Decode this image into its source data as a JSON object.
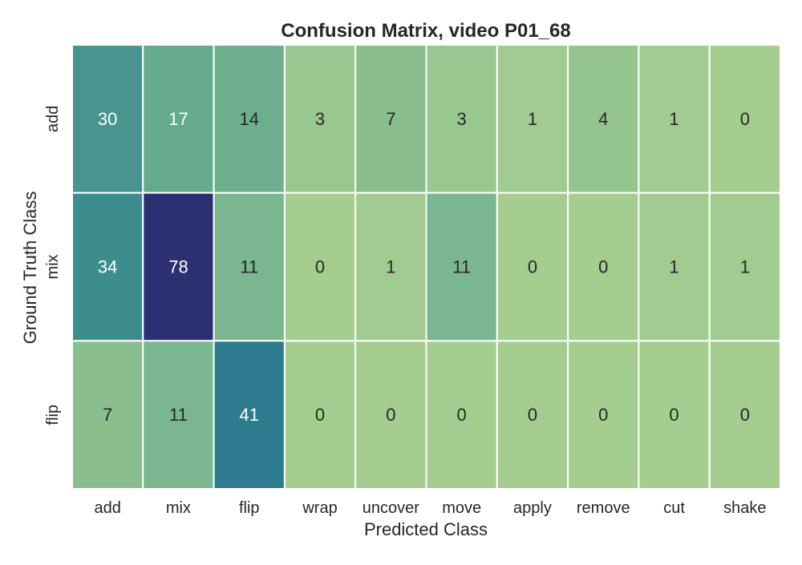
{
  "chart_data": {
    "type": "heatmap",
    "title": "Confusion Matrix, video P01_68",
    "xlabel": "Predicted Class",
    "ylabel": "Ground Truth Class",
    "x_categories": [
      "add",
      "mix",
      "flip",
      "wrap",
      "uncover",
      "move",
      "apply",
      "remove",
      "cut",
      "shake"
    ],
    "y_categories": [
      "add",
      "mix",
      "flip"
    ],
    "values": [
      [
        30,
        17,
        14,
        3,
        7,
        3,
        1,
        4,
        1,
        0
      ],
      [
        34,
        78,
        11,
        0,
        1,
        11,
        0,
        0,
        1,
        1
      ],
      [
        7,
        11,
        41,
        0,
        0,
        0,
        0,
        0,
        0,
        0
      ]
    ],
    "colorscale": "crest",
    "color_range": [
      0,
      78
    ],
    "colors": {
      "low": "#a5cd90",
      "high": "#2c3172",
      "grid_line": "#ffffff",
      "text_dark": "#262626",
      "text_light": "#ffffff"
    },
    "colorbar": false,
    "grid": false
  }
}
